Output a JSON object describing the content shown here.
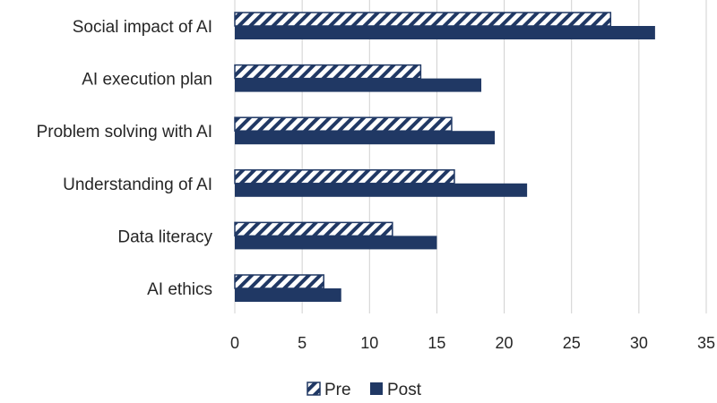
{
  "chart_data": {
    "type": "bar",
    "orientation": "horizontal",
    "categories": [
      "Social impact of AI",
      "AI execution plan",
      "Problem solving with AI",
      "Understanding of AI",
      "Data literacy",
      "AI ethics"
    ],
    "series": [
      {
        "name": "Pre",
        "values": [
          27.9,
          13.8,
          16.1,
          16.3,
          11.7,
          6.6
        ],
        "color": "#203864",
        "pattern": "diagonal-hatch"
      },
      {
        "name": "Post",
        "values": [
          31.2,
          18.3,
          19.3,
          21.7,
          15.0,
          7.9
        ],
        "color": "#203864",
        "pattern": "solid"
      }
    ],
    "xticks": [
      "0",
      "5",
      "10",
      "15",
      "20",
      "25",
      "30",
      "35"
    ],
    "xlim": [
      0,
      35
    ],
    "grid": "vertical",
    "legend_position": "bottom"
  }
}
